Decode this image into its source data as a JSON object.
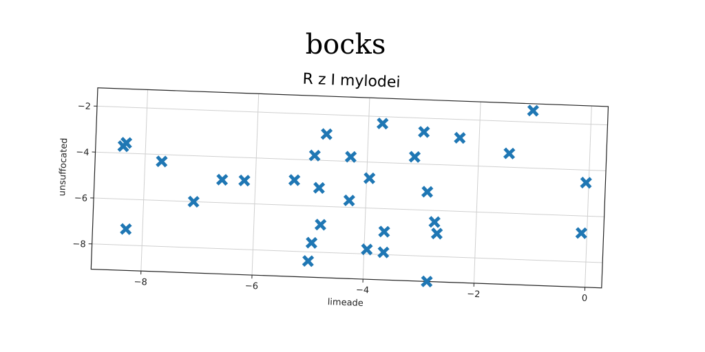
{
  "chart_data": {
    "type": "scatter",
    "suptitle": "bocks",
    "title": "R z I mylodei",
    "xlabel": "limeade",
    "ylabel": "unsuffocated",
    "xlim": [
      -8.9,
      0.3
    ],
    "ylim": [
      -9.1,
      -1.2
    ],
    "xticks": [
      -8,
      -6,
      -4,
      -2,
      0
    ],
    "yticks": [
      -2,
      -4,
      -6,
      -8
    ],
    "grid": true,
    "marker": "X",
    "color": "#1f77b4",
    "points": [
      {
        "x": -8.4,
        "y": -3.7
      },
      {
        "x": -8.35,
        "y": -3.55
      },
      {
        "x": -8.3,
        "y": -7.3
      },
      {
        "x": -7.7,
        "y": -4.3
      },
      {
        "x": -7.1,
        "y": -6.0
      },
      {
        "x": -6.6,
        "y": -5.0
      },
      {
        "x": -6.2,
        "y": -5.0
      },
      {
        "x": -5.3,
        "y": -4.9
      },
      {
        "x": -4.95,
        "y": -3.8
      },
      {
        "x": -4.85,
        "y": -5.2
      },
      {
        "x": -4.8,
        "y": -6.8
      },
      {
        "x": -4.75,
        "y": -2.85
      },
      {
        "x": -4.95,
        "y": -7.6
      },
      {
        "x": -5.0,
        "y": -8.4
      },
      {
        "x": -4.3,
        "y": -3.8
      },
      {
        "x": -4.3,
        "y": -5.7
      },
      {
        "x": -3.95,
        "y": -4.7
      },
      {
        "x": -3.95,
        "y": -7.8
      },
      {
        "x": -3.75,
        "y": -2.3
      },
      {
        "x": -3.65,
        "y": -7.0
      },
      {
        "x": -3.65,
        "y": -7.9
      },
      {
        "x": -3.15,
        "y": -3.7
      },
      {
        "x": -3.0,
        "y": -2.6
      },
      {
        "x": -2.9,
        "y": -5.2
      },
      {
        "x": -2.75,
        "y": -6.5
      },
      {
        "x": -2.7,
        "y": -7.0
      },
      {
        "x": -2.85,
        "y": -9.1
      },
      {
        "x": -2.35,
        "y": -2.8
      },
      {
        "x": -1.45,
        "y": -3.4
      },
      {
        "x": -1.05,
        "y": -1.5
      },
      {
        "x": -0.05,
        "y": -4.55
      },
      {
        "x": -0.1,
        "y": -6.75
      }
    ]
  }
}
